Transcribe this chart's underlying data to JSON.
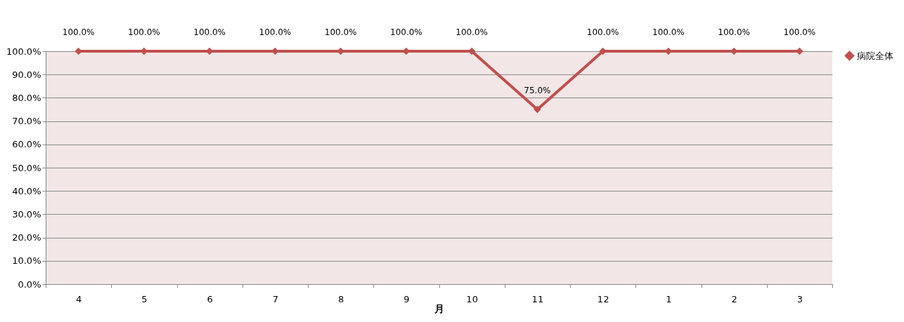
{
  "chart_data": {
    "type": "line",
    "xlabel": "月",
    "categories": [
      "4",
      "5",
      "6",
      "7",
      "8",
      "9",
      "10",
      "11",
      "12",
      "1",
      "2",
      "3"
    ],
    "series": [
      {
        "name": "病院全体",
        "color": "#c0504d",
        "values": [
          100,
          100,
          100,
          100,
          100,
          100,
          100,
          75,
          100,
          100,
          100,
          100
        ],
        "value_labels": [
          "100.0%",
          "100.0%",
          "100.0%",
          "100.0%",
          "100.0%",
          "100.0%",
          "100.0%",
          "75.0%",
          "100.0%",
          "100.0%",
          "100.0%",
          "100.0%"
        ]
      }
    ],
    "ylim": [
      0,
      100
    ],
    "yticks": [
      {
        "value": 0,
        "label": "0.0%"
      },
      {
        "value": 10,
        "label": "10.0%"
      },
      {
        "value": 20,
        "label": "20.0%"
      },
      {
        "value": 30,
        "label": "30.0%"
      },
      {
        "value": 40,
        "label": "40.0%"
      },
      {
        "value": 50,
        "label": "50.0%"
      },
      {
        "value": 60,
        "label": "60.0%"
      },
      {
        "value": 70,
        "label": "70.0%"
      },
      {
        "value": 80,
        "label": "80.0%"
      },
      {
        "value": 90,
        "label": "90.0%"
      },
      {
        "value": 100,
        "label": "100.0%"
      }
    ],
    "grid": "y",
    "legend": "right",
    "marker": "diamond",
    "line_style": "solid"
  }
}
